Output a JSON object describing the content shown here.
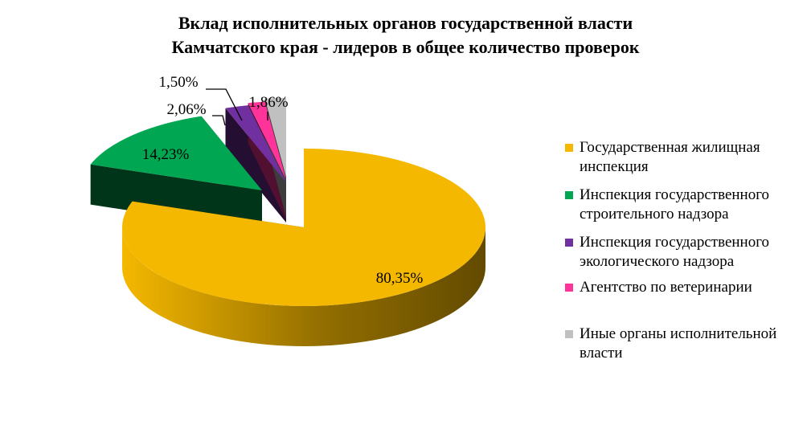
{
  "chart_data": {
    "type": "pie",
    "title_lines": [
      "Вклад исполнительных органов государственной власти",
      "Камчатского края - лидеров в общее количество проверок"
    ],
    "slices": [
      {
        "name": "Государственная жилищная инспекция",
        "value": 80.35,
        "label": "80,35%",
        "color": "#f5b800"
      },
      {
        "name": "Инспекция государственного строительного надзора",
        "value": 14.23,
        "label": "14,23%",
        "color": "#00a651"
      },
      {
        "name": "Инспекция государственного экологического надзора",
        "value": 2.06,
        "label": "2,06%",
        "color": "#7030a0"
      },
      {
        "name": "Агентство по ветеринарии",
        "value": 1.5,
        "label": "1,50%",
        "color": "#ff3399"
      },
      {
        "name": "Иные органы исполнительной власти",
        "value": 1.86,
        "label": "1,86%",
        "color": "#c0c0c0"
      }
    ],
    "legend_position": "right"
  },
  "legend": [
    {
      "lines": [
        "Государственная жилищная",
        "инспекция"
      ]
    },
    {
      "lines": [
        "Инспекция государственного",
        "строительного надзора"
      ]
    },
    {
      "lines": [
        "Инспекция государственного",
        "экологического надзора"
      ]
    },
    {
      "lines": [
        "Агентство по ветеринарии"
      ]
    },
    {
      "lines": [
        "Иные органы исполнительной",
        "власти"
      ]
    }
  ]
}
